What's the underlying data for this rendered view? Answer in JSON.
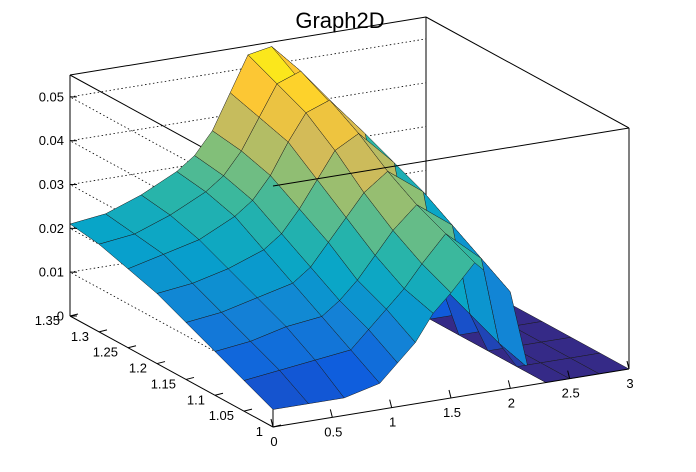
{
  "chart_data": {
    "type": "surface",
    "title": "Graph2D",
    "xlabel": "",
    "ylabel": "",
    "zlabel": "",
    "xlim": [
      0,
      3
    ],
    "ylim": [
      1,
      1.35
    ],
    "zlim": [
      0,
      0.055
    ],
    "x_ticks": [
      "0",
      "0.5",
      "1",
      "1.5",
      "2",
      "2.5",
      "3"
    ],
    "y_ticks": [
      "1",
      "1.05",
      "1.1",
      "1.15",
      "1.2",
      "1.25",
      "1.3",
      "1.35"
    ],
    "z_ticks": [
      "0",
      "0.01",
      "0.02",
      "0.03",
      "0.04",
      "0.05"
    ],
    "x_tick_values": [
      0,
      0.5,
      1,
      1.5,
      2,
      2.5,
      3
    ],
    "y_tick_values": [
      1,
      1.05,
      1.1,
      1.15,
      1.2,
      1.25,
      1.3,
      1.35
    ],
    "z_tick_values": [
      0,
      0.01,
      0.02,
      0.03,
      0.04,
      0.05
    ],
    "grid": true,
    "colormap": [
      "#352a87",
      "#0f5cdd",
      "#1481d6",
      "#06a4ca",
      "#2eb7a4",
      "#87bf77",
      "#d1bb59",
      "#fec832",
      "#f9fb0e"
    ],
    "x_grid": [
      0,
      0.3,
      0.6,
      0.9,
      1.05,
      1.2,
      1.35,
      1.5,
      1.7,
      2.0,
      2.15,
      2.3,
      2.5,
      2.75,
      3.0
    ],
    "y_grid": [
      1.0,
      1.05,
      1.1,
      1.15,
      1.2,
      1.25,
      1.3,
      1.35
    ],
    "z_values": [
      [
        0.004,
        0.004,
        0.004,
        0.006,
        0.01,
        0.014,
        0.02,
        0.024,
        0.03,
        0.022,
        0.004,
        0.0,
        0.0,
        0.0,
        0.0
      ],
      [
        0.007,
        0.008,
        0.009,
        0.01,
        0.014,
        0.018,
        0.022,
        0.027,
        0.033,
        0.026,
        0.006,
        0.0,
        0.0,
        0.0,
        0.0
      ],
      [
        0.01,
        0.011,
        0.013,
        0.014,
        0.017,
        0.021,
        0.026,
        0.031,
        0.036,
        0.03,
        0.009,
        0.0,
        0.0,
        0.0,
        0.0
      ],
      [
        0.013,
        0.014,
        0.016,
        0.018,
        0.021,
        0.026,
        0.031,
        0.036,
        0.04,
        0.034,
        0.012,
        0.0,
        0.0,
        0.0,
        0.0
      ],
      [
        0.016,
        0.017,
        0.019,
        0.022,
        0.025,
        0.03,
        0.036,
        0.042,
        0.045,
        0.037,
        0.015,
        0.0,
        0.0,
        0.0,
        0.0
      ],
      [
        0.018,
        0.02,
        0.022,
        0.026,
        0.029,
        0.034,
        0.041,
        0.047,
        0.049,
        0.04,
        0.018,
        0.0,
        0.0,
        0.0,
        0.0
      ],
      [
        0.02,
        0.021,
        0.024,
        0.028,
        0.031,
        0.036,
        0.043,
        0.05,
        0.052,
        0.042,
        0.02,
        0.0,
        0.0,
        0.0,
        0.0
      ],
      [
        0.021,
        0.022,
        0.025,
        0.029,
        0.032,
        0.037,
        0.045,
        0.053,
        0.054,
        0.043,
        0.021,
        0.0,
        0.0,
        0.0,
        0.0
      ]
    ]
  }
}
